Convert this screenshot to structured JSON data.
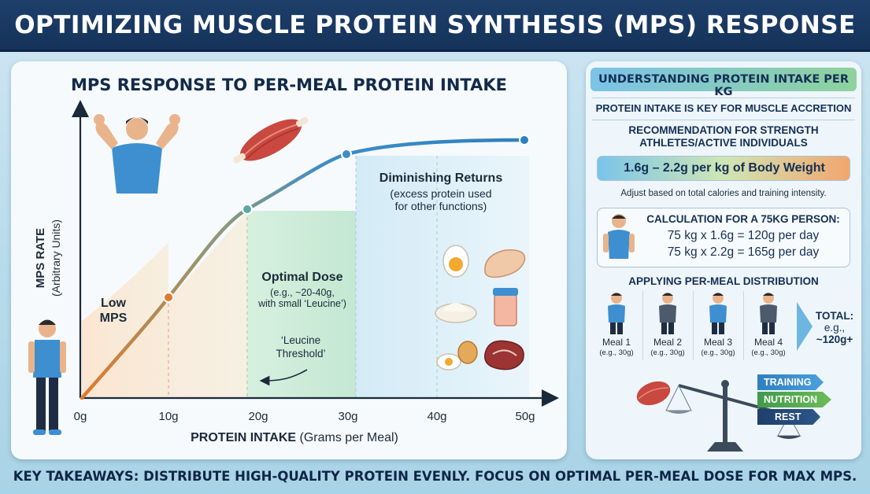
{
  "header": {
    "title": "OPTIMIZING MUSCLE PROTEIN SYNTHESIS (MPS) RESPONSE"
  },
  "chart": {
    "title": "MPS RESPONSE TO PER-MEAL PROTEIN INTAKE",
    "ylabel_line1": "MPS RATE",
    "ylabel_line2": "(Arbitrary Units)",
    "xlabel_bold": "PROTEIN INTAKE",
    "xlabel_rest": "(Grams per Meal)",
    "zone_low_line1": "Low",
    "zone_low_line2": "MPS",
    "zone_optimal_title": "Optimal Dose",
    "zone_optimal_line1": "(e.g., ~20-40g,",
    "zone_optimal_line2": "with small ‘Leucine’)",
    "leucine_line1": "‘Leucine",
    "leucine_line2": "Threshold’",
    "zone_diminishing_title": "Diminishing Returns",
    "zone_diminishing_line1": "(excess protein used",
    "zone_diminishing_line2": "for other functions)"
  },
  "chart_data": {
    "type": "line",
    "title": "MPS RESPONSE TO PER-MEAL PROTEIN INTAKE",
    "xlabel": "PROTEIN INTAKE (Grams per Meal)",
    "ylabel": "MPS RATE (Arbitrary Units)",
    "x_ticks": [
      "0g",
      "10g",
      "20g",
      "30g",
      "40g",
      "50g"
    ],
    "xlim": [
      0,
      50
    ],
    "markers": [
      {
        "x": 10,
        "y": 35
      },
      {
        "x": 18,
        "y": 66
      },
      {
        "x": 29,
        "y": 89
      },
      {
        "x": 48,
        "y": 94
      }
    ],
    "zones": [
      "Low MPS",
      "Optimal Dose",
      "Diminishing Returns"
    ]
  },
  "right": {
    "title": "UNDERSTANDING PROTEIN INTAKE PER KG",
    "key_line": "PROTEIN INTAKE IS KEY FOR MUSCLE ACCRETION",
    "recommendation_line1": "RECOMMENDATION FOR STRENGTH",
    "recommendation_line2": "ATHLETES/ACTIVE INDIVIDUALS",
    "range": "1.6g – 2.2g per kg of Body Weight",
    "adjust": "Adjust based on total calories and training intensity.",
    "calc_title": "CALCULATION FOR A 75KG PERSON:",
    "calc_line1": "75 kg x 1.6g = 120g per day",
    "calc_line2": "75 kg x 2.2g = 165g per day",
    "distribution_title": "APPLYING PER-MEAL DISTRIBUTION",
    "meals": [
      {
        "label": "Meal 1",
        "sub": "(e.g., 30g)"
      },
      {
        "label": "Meal 2",
        "sub": "(e.g., 30g)"
      },
      {
        "label": "Meal 3",
        "sub": "(e.g., 30g)"
      },
      {
        "label": "Meal 4",
        "sub": "(e.g., 30g)"
      }
    ],
    "total_label": "TOTAL:",
    "total_eg": "e.g.,",
    "total_value": "~120g+",
    "tags": [
      "TRAINING",
      "NUTRITION",
      "REST"
    ]
  },
  "footer": {
    "text": "KEY TAKEAWAYS: DISTRIBUTE HIGH-QUALITY PROTEIN EVENLY. FOCUS ON OPTIMAL PER-MEAL DOSE FOR MAX MPS."
  },
  "colors": {
    "header_bg": "#1a3a63",
    "curve_low": "#e07a2e",
    "curve_high": "#3a86c6",
    "optimal_zone": "#c9ead8",
    "diminishing_zone": "#cfe7f4"
  }
}
